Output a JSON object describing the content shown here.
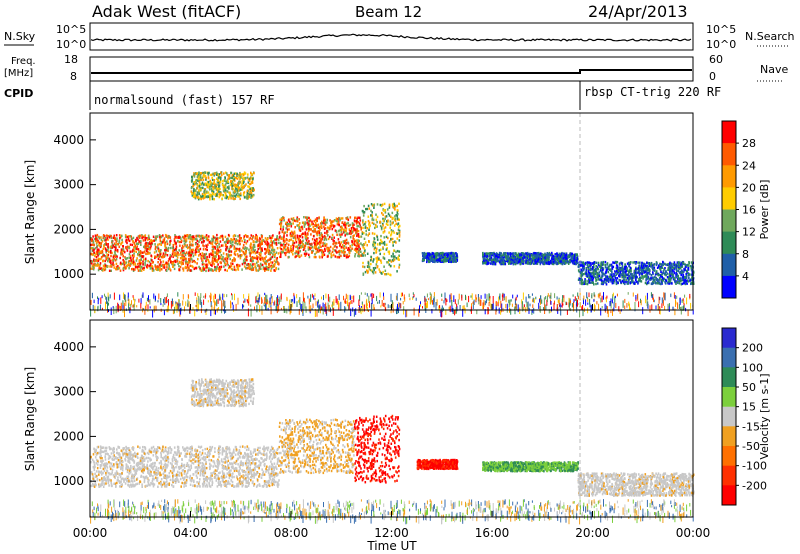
{
  "header": {
    "station": "Adak West (fitACF)",
    "beam": "Beam 12",
    "date": "24/Apr/2013"
  },
  "panels": {
    "nsky": {
      "label": "N.Sky",
      "right_label": "N.Search",
      "tick_top": "10^5",
      "tick_bottom": "10^0"
    },
    "freq": {
      "label_line1": "Freq.",
      "label_line2": "[MHz]",
      "right_label": "Nave",
      "left_ticks": [
        "18",
        "8"
      ],
      "right_ticks": [
        "60",
        "0"
      ]
    },
    "cpid": {
      "label": "CPID",
      "segments": [
        {
          "text": "normalsound (fast) 157 RF",
          "start_hour": 0
        },
        {
          "text": "rbsp CT-trig 220 RF",
          "start_hour": 19.4
        }
      ]
    }
  },
  "chart_data": [
    {
      "type": "heatmap",
      "name": "power",
      "ylabel": "Slant Range [km]",
      "xlabel": "Time UT",
      "x_ticks": [
        "00:00",
        "04:00",
        "08:00",
        "12:00",
        "16:00",
        "20:00",
        "00:00"
      ],
      "y_ticks": [
        1000,
        2000,
        3000,
        4000
      ],
      "ylim": [
        200,
        4600
      ],
      "xlim_hours": [
        0,
        24
      ],
      "colorbar": {
        "label": "Power [dB]",
        "ticks": [
          "28",
          "24",
          "20",
          "16",
          "12",
          "8",
          "4"
        ],
        "colors": [
          "#ff0000",
          "#ff5a00",
          "#ff9a00",
          "#ffcc00",
          "#6fa85c",
          "#2e8b57",
          "#1f5fa8",
          "#0000ff"
        ]
      },
      "regions": [
        {
          "start": 0.0,
          "end": 7.5,
          "low": 1100,
          "high": 1900,
          "level": "strong"
        },
        {
          "start": 7.5,
          "end": 10.8,
          "low": 1400,
          "high": 2300,
          "level": "strong"
        },
        {
          "start": 10.8,
          "end": 12.3,
          "low": 1000,
          "high": 2600,
          "level": "medium"
        },
        {
          "start": 13.2,
          "end": 14.6,
          "low": 1300,
          "high": 1500,
          "level": "weak"
        },
        {
          "start": 15.6,
          "end": 19.4,
          "low": 1250,
          "high": 1500,
          "level": "weak"
        },
        {
          "start": 19.4,
          "end": 24.0,
          "low": 800,
          "high": 1300,
          "level": "weak"
        },
        {
          "start": 4.0,
          "end": 6.5,
          "low": 2700,
          "high": 3300,
          "level": "medium"
        }
      ]
    },
    {
      "type": "heatmap",
      "name": "velocity",
      "ylabel": "Slant Range [km]",
      "xlabel": "Time UT",
      "x_ticks": [
        "00:00",
        "04:00",
        "08:00",
        "12:00",
        "16:00",
        "20:00",
        "00:00"
      ],
      "y_ticks": [
        1000,
        2000,
        3000,
        4000
      ],
      "ylim": [
        200,
        4600
      ],
      "xlim_hours": [
        0,
        24
      ],
      "colorbar": {
        "label": "Velocity [m s-1]",
        "ticks": [
          "200",
          "100",
          "50",
          "15",
          "-15",
          "-50",
          "-100",
          "-200"
        ],
        "colors": [
          "#2a2ad0",
          "#3a6fb0",
          "#2e8b57",
          "#7ccf3c",
          "#c8c8c8",
          "#f0a020",
          "#ff7000",
          "#ff3000",
          "#ff0000"
        ]
      },
      "regions": [
        {
          "start": 0.0,
          "end": 7.5,
          "low": 900,
          "high": 1800,
          "level": "gray"
        },
        {
          "start": 7.5,
          "end": 10.5,
          "low": 1200,
          "high": 2400,
          "level": "orange"
        },
        {
          "start": 10.5,
          "end": 12.3,
          "low": 1000,
          "high": 2500,
          "level": "red"
        },
        {
          "start": 13.0,
          "end": 14.6,
          "low": 1300,
          "high": 1500,
          "level": "red"
        },
        {
          "start": 15.6,
          "end": 19.4,
          "low": 1250,
          "high": 1450,
          "level": "green"
        },
        {
          "start": 19.4,
          "end": 24.0,
          "low": 700,
          "high": 1200,
          "level": "gray"
        },
        {
          "start": 4.0,
          "end": 6.5,
          "low": 2700,
          "high": 3300,
          "level": "gray"
        }
      ]
    }
  ]
}
